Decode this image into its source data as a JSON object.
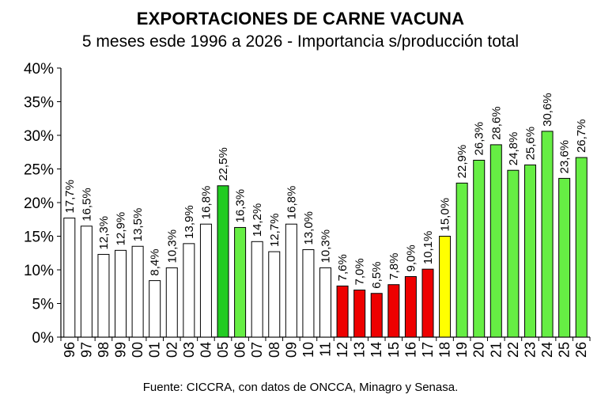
{
  "chart_data": {
    "type": "bar",
    "title": "EXPORTACIONES DE CARNE VACUNA",
    "subtitle": "5 meses esde 1996 a 2026 - Importancia s/producción total",
    "source": "Fuente: CICCRA, con datos de ONCCA, Minagro y Senasa.",
    "categories": [
      "96",
      "97",
      "98",
      "99",
      "00",
      "01",
      "02",
      "03",
      "04",
      "05",
      "06",
      "07",
      "08",
      "09",
      "10",
      "11",
      "12",
      "13",
      "14",
      "15",
      "16",
      "17",
      "18",
      "19",
      "20",
      "21",
      "22",
      "23",
      "24",
      "25",
      "26"
    ],
    "values": [
      17.7,
      16.5,
      12.3,
      12.9,
      13.5,
      8.4,
      10.3,
      13.9,
      16.8,
      22.5,
      16.3,
      14.2,
      12.7,
      16.8,
      13.0,
      10.3,
      7.6,
      7.0,
      6.5,
      7.8,
      9.0,
      10.1,
      15.0,
      22.9,
      26.3,
      28.6,
      24.8,
      25.6,
      30.6,
      23.6,
      26.7
    ],
    "data_labels": [
      "17,7%",
      "16,5%",
      "12,3%",
      "12,9%",
      "13,5%",
      "8,4%",
      "10,3%",
      "13,9%",
      "16,8%",
      "22,5%",
      "16,3%",
      "14,2%",
      "12,7%",
      "16,8%",
      "13,0%",
      "10,3%",
      "7,6%",
      "7,0%",
      "6,5%",
      "7,8%",
      "9,0%",
      "10,1%",
      "15,0%",
      "22,9%",
      "26,3%",
      "28,6%",
      "24,8%",
      "25,6%",
      "30,6%",
      "23,6%",
      "26,7%"
    ],
    "bar_colors": [
      "#ffffff",
      "#ffffff",
      "#ffffff",
      "#ffffff",
      "#ffffff",
      "#ffffff",
      "#ffffff",
      "#ffffff",
      "#ffffff",
      "#22cc22",
      "#66ee44",
      "#ffffff",
      "#ffffff",
      "#ffffff",
      "#ffffff",
      "#ffffff",
      "#ee0000",
      "#ee0000",
      "#ee0000",
      "#ee0000",
      "#ee0000",
      "#ee0000",
      "#ffff00",
      "#66ee44",
      "#66ee44",
      "#66ee44",
      "#66ee44",
      "#66ee44",
      "#66ee44",
      "#66ee44",
      "#66ee44"
    ],
    "yticks": [
      "0%",
      "5%",
      "10%",
      "15%",
      "20%",
      "25%",
      "30%",
      "35%",
      "40%"
    ],
    "ylim": [
      0,
      40
    ],
    "grid": false,
    "legend": "none"
  }
}
